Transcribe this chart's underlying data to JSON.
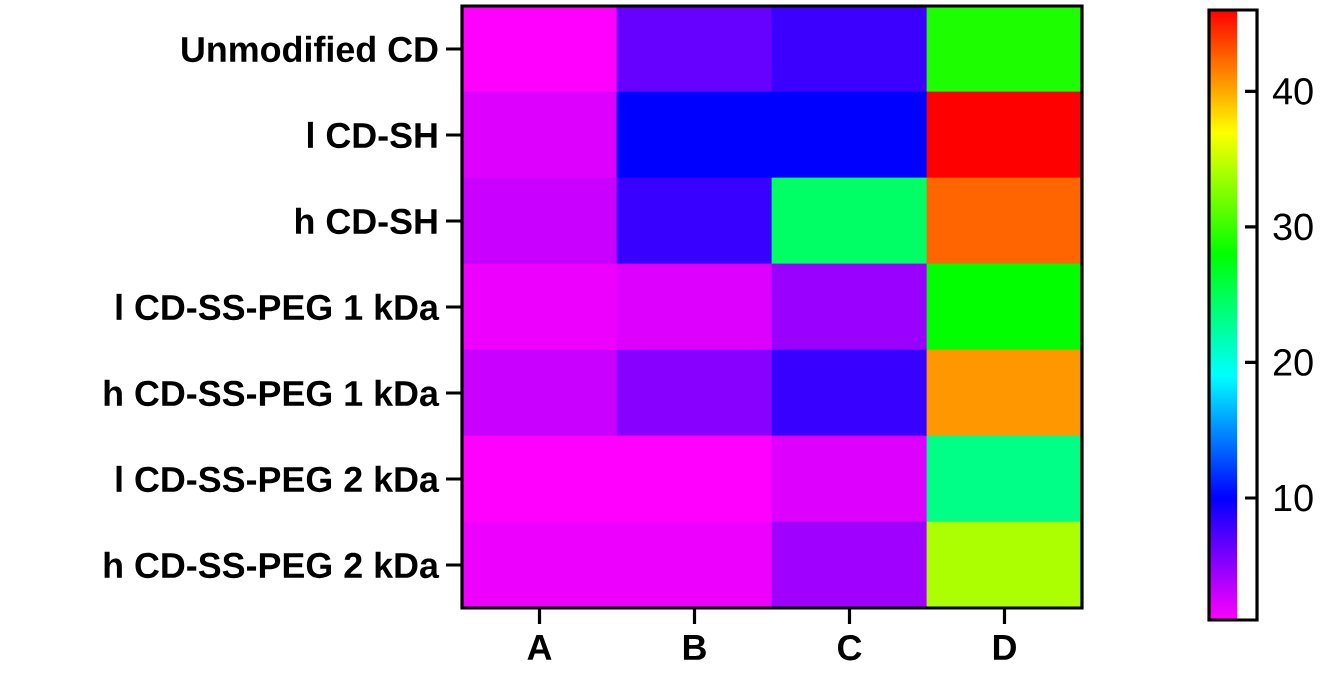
{
  "chart_data": {
    "type": "heatmap",
    "categories": [
      "A",
      "B",
      "C",
      "D"
    ],
    "y_categories": [
      "Unmodified CD",
      "l CD-SH",
      "h CD-SH",
      "l CD-SS-PEG 1 kDa",
      "h CD-SS-PEG 1 kDa",
      "l CD-SS-PEG 2 kDa",
      "h CD-SS-PEG 2 kDa"
    ],
    "cells": [
      [
        1,
        6.4,
        7.9,
        29
      ],
      [
        2.2,
        10,
        10,
        46
      ],
      [
        2.9,
        8,
        24.4,
        42.4
      ],
      [
        1.6,
        2.2,
        4.6,
        28
      ],
      [
        2.9,
        5.2,
        8,
        40.6
      ],
      [
        1,
        1,
        2.2,
        23.2
      ],
      [
        1.6,
        1.6,
        4.4,
        34
      ]
    ],
    "clim": [
      1,
      46
    ],
    "cticks": [
      10,
      20,
      30,
      40
    ]
  }
}
